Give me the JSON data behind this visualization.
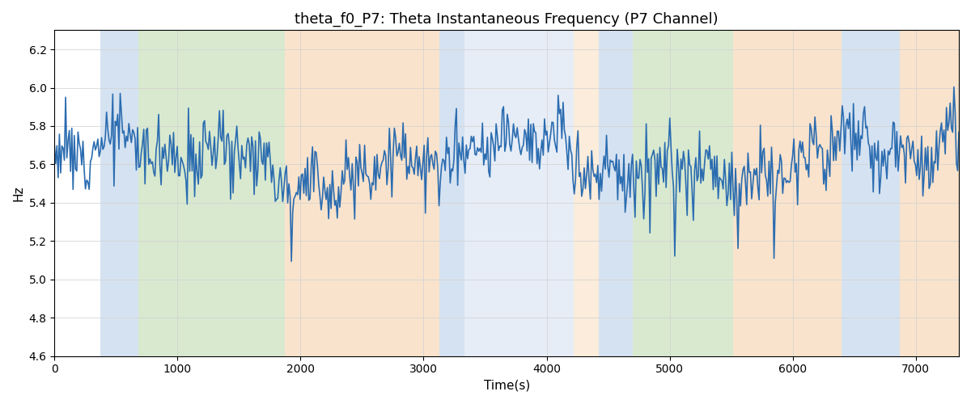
{
  "title": "theta_f0_P7: Theta Instantaneous Frequency (P7 Channel)",
  "xlabel": "Time(s)",
  "ylabel": "Hz",
  "xlim": [
    0,
    7350
  ],
  "ylim": [
    4.6,
    6.3
  ],
  "line_color": "#2b6cb0",
  "line_width": 1.2,
  "background_color": "#ffffff",
  "regions": [
    {
      "start": 375,
      "end": 680,
      "color": "#adc6e5",
      "alpha": 0.5
    },
    {
      "start": 680,
      "end": 1872,
      "color": "#b2d4a0",
      "alpha": 0.5
    },
    {
      "start": 1872,
      "end": 3130,
      "color": "#f5c99a",
      "alpha": 0.5
    },
    {
      "start": 3130,
      "end": 3335,
      "color": "#adc6e5",
      "alpha": 0.5
    },
    {
      "start": 3335,
      "end": 4220,
      "color": "#adc6e5",
      "alpha": 0.3
    },
    {
      "start": 4220,
      "end": 4424,
      "color": "#f5c99a",
      "alpha": 0.35
    },
    {
      "start": 4424,
      "end": 4697,
      "color": "#adc6e5",
      "alpha": 0.5
    },
    {
      "start": 4697,
      "end": 5513,
      "color": "#b2d4a0",
      "alpha": 0.5
    },
    {
      "start": 5513,
      "end": 6396,
      "color": "#f5c99a",
      "alpha": 0.5
    },
    {
      "start": 6396,
      "end": 6872,
      "color": "#adc6e5",
      "alpha": 0.5
    },
    {
      "start": 6872,
      "end": 7350,
      "color": "#f5c99a",
      "alpha": 0.5
    }
  ],
  "n_points": 730,
  "seed": 12,
  "base_freq": 5.62,
  "title_fontsize": 13,
  "yticks": [
    4.6,
    4.8,
    5.0,
    5.2,
    5.4,
    5.6,
    5.8,
    6.0,
    6.2
  ],
  "xticks": [
    0,
    1000,
    2000,
    3000,
    4000,
    5000,
    6000,
    7000
  ]
}
